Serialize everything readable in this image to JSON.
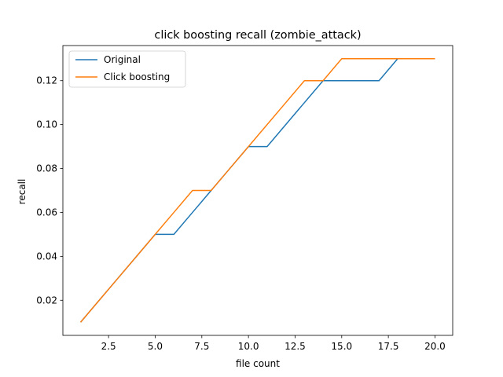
{
  "chart_data": {
    "type": "line",
    "title": "click boosting recall (zombie_attack)",
    "xlabel": "file count",
    "ylabel": "recall",
    "xlim": [
      0.05,
      20.95
    ],
    "ylim": [
      0.004,
      0.136
    ],
    "xticks": [
      2.5,
      5.0,
      7.5,
      10.0,
      12.5,
      15.0,
      17.5,
      20.0
    ],
    "xtick_labels": [
      "2.5",
      "5.0",
      "7.5",
      "10.0",
      "12.5",
      "15.0",
      "17.5",
      "20.0"
    ],
    "yticks": [
      0.02,
      0.04,
      0.06,
      0.08,
      0.1,
      0.12
    ],
    "ytick_labels": [
      "0.02",
      "0.04",
      "0.06",
      "0.08",
      "0.10",
      "0.12"
    ],
    "grid": false,
    "legend_position": "top-left",
    "x": [
      1,
      2,
      3,
      4,
      5,
      6,
      7,
      8,
      9,
      10,
      11,
      12,
      13,
      14,
      15,
      16,
      17,
      18,
      19,
      20
    ],
    "series": [
      {
        "name": "Original",
        "color": "#1f77b4",
        "values": [
          0.01,
          0.02,
          0.03,
          0.04,
          0.05,
          0.05,
          0.06,
          0.07,
          0.08,
          0.09,
          0.09,
          0.1,
          0.11,
          0.12,
          0.12,
          0.12,
          0.12,
          0.13,
          0.13,
          0.13
        ]
      },
      {
        "name": "Click boosting",
        "color": "#ff7f0e",
        "values": [
          0.01,
          0.02,
          0.03,
          0.04,
          0.05,
          0.06,
          0.07,
          0.07,
          0.08,
          0.09,
          0.1,
          0.11,
          0.12,
          0.12,
          0.13,
          0.13,
          0.13,
          0.13,
          0.13,
          0.13
        ]
      }
    ]
  }
}
